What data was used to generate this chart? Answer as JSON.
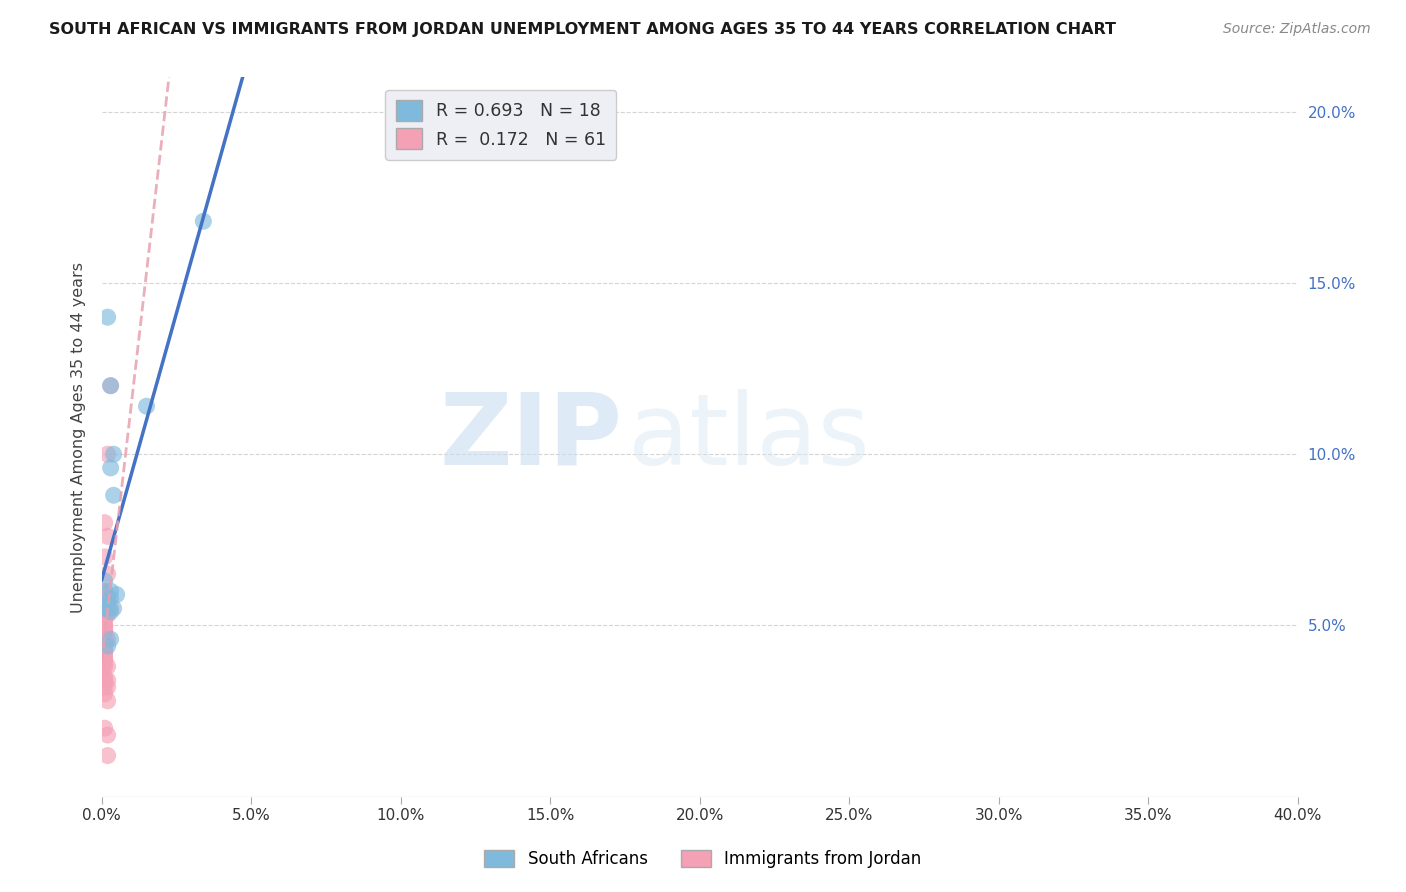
{
  "title": "SOUTH AFRICAN VS IMMIGRANTS FROM JORDAN UNEMPLOYMENT AMONG AGES 35 TO 44 YEARS CORRELATION CHART",
  "source": "Source: ZipAtlas.com",
  "ylabel": "Unemployment Among Ages 35 to 44 years",
  "background_color": "#ffffff",
  "south_africans": {
    "label": "South Africans",
    "color": "#7fbadd",
    "R": 0.693,
    "N": 18,
    "x": [
      0.001,
      0.002,
      0.002,
      0.015,
      0.003,
      0.004,
      0.003,
      0.003,
      0.004,
      0.003,
      0.004,
      0.005,
      0.003,
      0.034,
      0.001,
      0.002,
      0.002,
      0.003
    ],
    "y": [
      0.055,
      0.057,
      0.14,
      0.114,
      0.12,
      0.1,
      0.058,
      0.096,
      0.088,
      0.054,
      0.055,
      0.059,
      0.06,
      0.168,
      0.063,
      0.055,
      0.044,
      0.046
    ]
  },
  "jordan": {
    "label": "Immigrants from Jordan",
    "color": "#f4a0b5",
    "R": 0.172,
    "N": 61,
    "x": [
      0.0005,
      0.001,
      0.001,
      0.0005,
      0.001,
      0.001,
      0.0005,
      0.001,
      0.001,
      0.001,
      0.002,
      0.002,
      0.001,
      0.002,
      0.002,
      0.003,
      0.002,
      0.001,
      0.001,
      0.001,
      0.001,
      0.0005,
      0.0005,
      0.0005,
      0.001,
      0.001,
      0.001,
      0.001,
      0.002,
      0.001,
      0.001,
      0.001,
      0.001,
      0.001,
      0.002,
      0.003,
      0.002,
      0.001,
      0.001,
      0.001,
      0.001,
      0.002,
      0.002,
      0.002,
      0.001,
      0.001,
      0.001,
      0.002,
      0.001,
      0.001,
      0.001,
      0.001,
      0.001,
      0.002,
      0.001,
      0.002,
      0.001,
      0.001,
      0.001,
      0.001,
      0.002
    ],
    "y": [
      0.043,
      0.046,
      0.06,
      0.055,
      0.046,
      0.05,
      0.041,
      0.055,
      0.057,
      0.049,
      0.054,
      0.053,
      0.06,
      0.076,
      0.1,
      0.12,
      0.057,
      0.06,
      0.052,
      0.041,
      0.048,
      0.046,
      0.055,
      0.044,
      0.042,
      0.039,
      0.042,
      0.048,
      0.038,
      0.043,
      0.044,
      0.038,
      0.04,
      0.054,
      0.056,
      0.055,
      0.034,
      0.034,
      0.032,
      0.03,
      0.02,
      0.018,
      0.028,
      0.032,
      0.035,
      0.05,
      0.048,
      0.065,
      0.043,
      0.055,
      0.05,
      0.07,
      0.08,
      0.046,
      0.052,
      0.058,
      0.045,
      0.04,
      0.048,
      0.045,
      0.012
    ]
  },
  "sa_line_slope": 0.42,
  "sa_line_intercept": 0.038,
  "jd_line_slope": 0.1,
  "jd_line_intercept": 0.048,
  "xlim": [
    0.0,
    0.4
  ],
  "ylim": [
    0.0,
    0.21
  ],
  "xticks": [
    0.0,
    0.05,
    0.1,
    0.15,
    0.2,
    0.25,
    0.3,
    0.35,
    0.4
  ],
  "yticks": [
    0.0,
    0.05,
    0.1,
    0.15,
    0.2
  ],
  "ytick_labels_right": [
    "",
    "5.0%",
    "10.0%",
    "15.0%",
    "20.0%"
  ],
  "xtick_labels": [
    "0.0%",
    "5.0%",
    "10.0%",
    "15.0%",
    "20.0%",
    "25.0%",
    "30.0%",
    "35.0%",
    "40.0%"
  ],
  "watermark_zip": "ZIP",
  "watermark_atlas": "atlas",
  "legend_box_color": "#eeeef5",
  "blue_line_color": "#4472c4",
  "pink_line_color": "#e8a0b0",
  "grid_color": "#d5d5d5",
  "right_axis_color": "#4472c4",
  "title_fontsize": 11.5,
  "source_fontsize": 10,
  "marker_size": 150,
  "marker_alpha": 0.65
}
